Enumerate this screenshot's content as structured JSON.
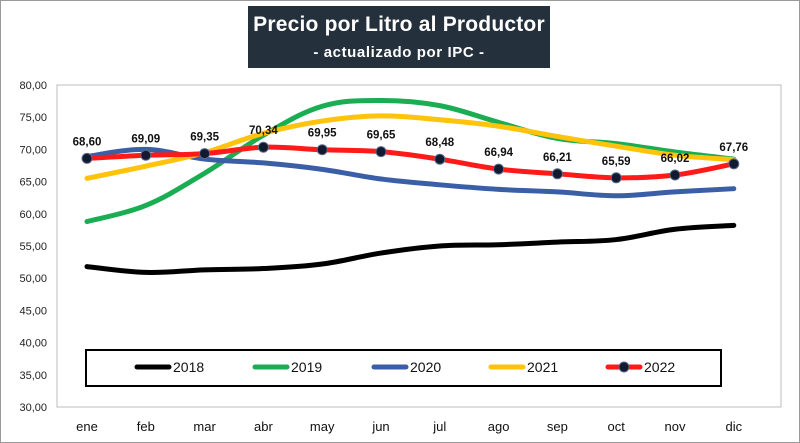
{
  "title": "Precio por Litro al Productor",
  "subtitle": "- actualizado por IPC -",
  "chart_data": {
    "type": "line",
    "title": "Precio por Litro al Productor",
    "subtitle": "- actualizado por IPC -",
    "categories": [
      "ene",
      "feb",
      "mar",
      "abr",
      "may",
      "jun",
      "jul",
      "ago",
      "sep",
      "oct",
      "nov",
      "dic"
    ],
    "ylim": [
      30,
      80
    ],
    "ytick_labels": [
      "30,00",
      "35,00",
      "40,00",
      "45,00",
      "50,00",
      "55,00",
      "60,00",
      "65,00",
      "70,00",
      "75,00",
      "80,00"
    ],
    "grid": false,
    "legend_position": "bottom-inside",
    "series": [
      {
        "name": "2018",
        "color": "#000000",
        "markers": false,
        "values": [
          51.8,
          50.9,
          51.3,
          51.5,
          52.2,
          53.9,
          55.0,
          55.2,
          55.6,
          56.0,
          57.6,
          58.2
        ]
      },
      {
        "name": "2019",
        "color": "#1aad52",
        "markers": false,
        "values": [
          58.8,
          61.3,
          66.3,
          72.2,
          76.7,
          77.6,
          76.8,
          74.2,
          71.7,
          70.9,
          69.6,
          68.5
        ]
      },
      {
        "name": "2020",
        "color": "#3a5fa6",
        "markers": false,
        "values": [
          68.9,
          70.0,
          68.5,
          67.9,
          66.9,
          65.4,
          64.5,
          63.8,
          63.4,
          62.8,
          63.4,
          63.9
        ]
      },
      {
        "name": "2021",
        "color": "#ffc30b",
        "markers": false,
        "values": [
          65.5,
          67.4,
          69.5,
          72.5,
          74.4,
          75.2,
          74.6,
          73.6,
          72.0,
          70.5,
          69.1,
          68.4
        ]
      },
      {
        "name": "2022",
        "color": "#ff1a1a",
        "markers": true,
        "values": [
          68.6,
          69.09,
          69.35,
          70.34,
          69.95,
          69.65,
          68.48,
          66.94,
          66.21,
          65.59,
          66.02,
          67.76
        ],
        "data_labels": [
          "68,60",
          "69,09",
          "69,35",
          "70,34",
          "69,95",
          "69,65",
          "68,48",
          "66,94",
          "66,21",
          "65,59",
          "66,02",
          "67,76"
        ]
      }
    ]
  }
}
